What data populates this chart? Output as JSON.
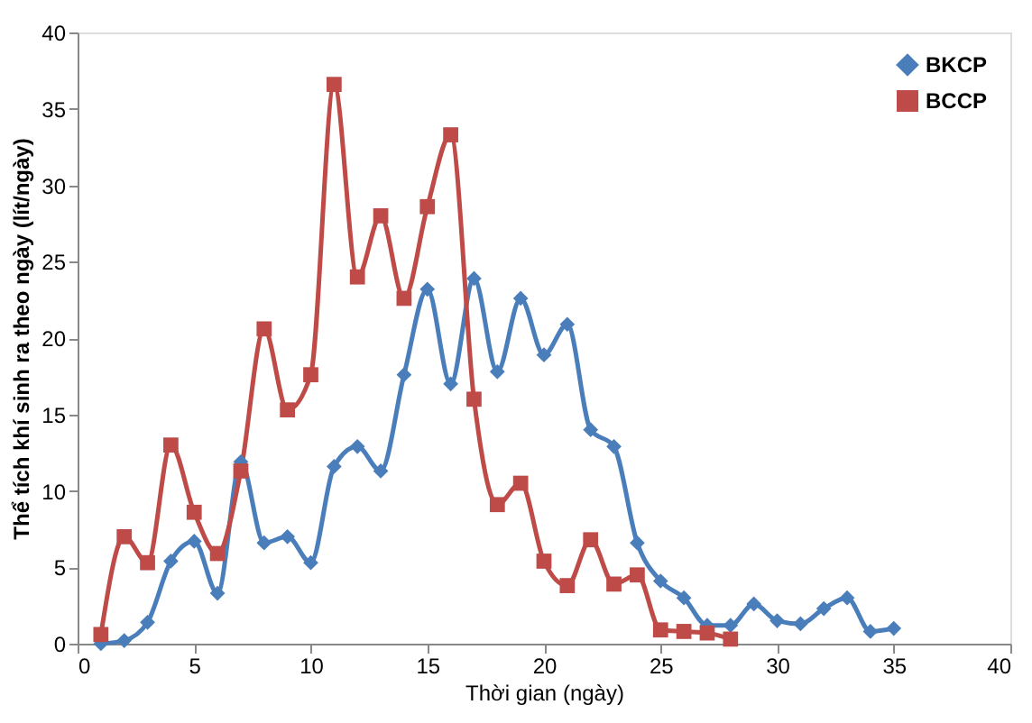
{
  "chart_data": {
    "type": "line",
    "xlabel": "Thời gian (ngày)",
    "ylabel": "Thể tích khí sinh ra theo ngày (lít/ngày)",
    "xlim": [
      0,
      40
    ],
    "xticks": [
      0,
      5,
      10,
      15,
      20,
      25,
      30,
      35,
      40
    ],
    "ylim": [
      0,
      40
    ],
    "yticks": [
      0,
      5,
      10,
      15,
      20,
      25,
      30,
      35,
      40
    ],
    "grid": false,
    "legend": "top right",
    "series": [
      {
        "name": "BKCP",
        "color": "#4a7ebb",
        "marker": "diamond",
        "x": [
          1,
          2,
          3,
          4,
          5,
          6,
          7,
          8,
          9,
          10,
          11,
          12,
          13,
          14,
          15,
          16,
          17,
          18,
          19,
          20,
          21,
          22,
          23,
          24,
          25,
          26,
          27,
          28,
          29,
          30,
          31,
          32,
          33,
          34,
          35
        ],
        "values": [
          0,
          0.2,
          1.4,
          5.4,
          6.7,
          3.3,
          11.9,
          6.6,
          7,
          5.3,
          11.6,
          12.9,
          11.3,
          17.6,
          23.2,
          17,
          23.9,
          17.8,
          22.6,
          18.9,
          20.9,
          14,
          12.9,
          6.6,
          4.1,
          3,
          1.2,
          1.2,
          2.6,
          1.5,
          1.3,
          2.3,
          3,
          0.8,
          1
        ]
      },
      {
        "name": "BCCP",
        "color": "#be4b48",
        "marker": "square",
        "x": [
          1,
          2,
          3,
          4,
          5,
          6,
          7,
          8,
          9,
          10,
          11,
          12,
          13,
          14,
          15,
          16,
          17,
          18,
          19,
          20,
          21,
          22,
          23,
          24,
          25,
          26,
          27,
          28
        ],
        "values": [
          0.6,
          7,
          5.3,
          13,
          8.6,
          5.9,
          11.3,
          20.6,
          15.3,
          17.6,
          36.6,
          24,
          28,
          22.6,
          28.6,
          33.3,
          16,
          9.1,
          10.5,
          5.4,
          3.8,
          6.8,
          3.9,
          4.5,
          0.9,
          0.8,
          0.7,
          0.3
        ]
      }
    ]
  }
}
